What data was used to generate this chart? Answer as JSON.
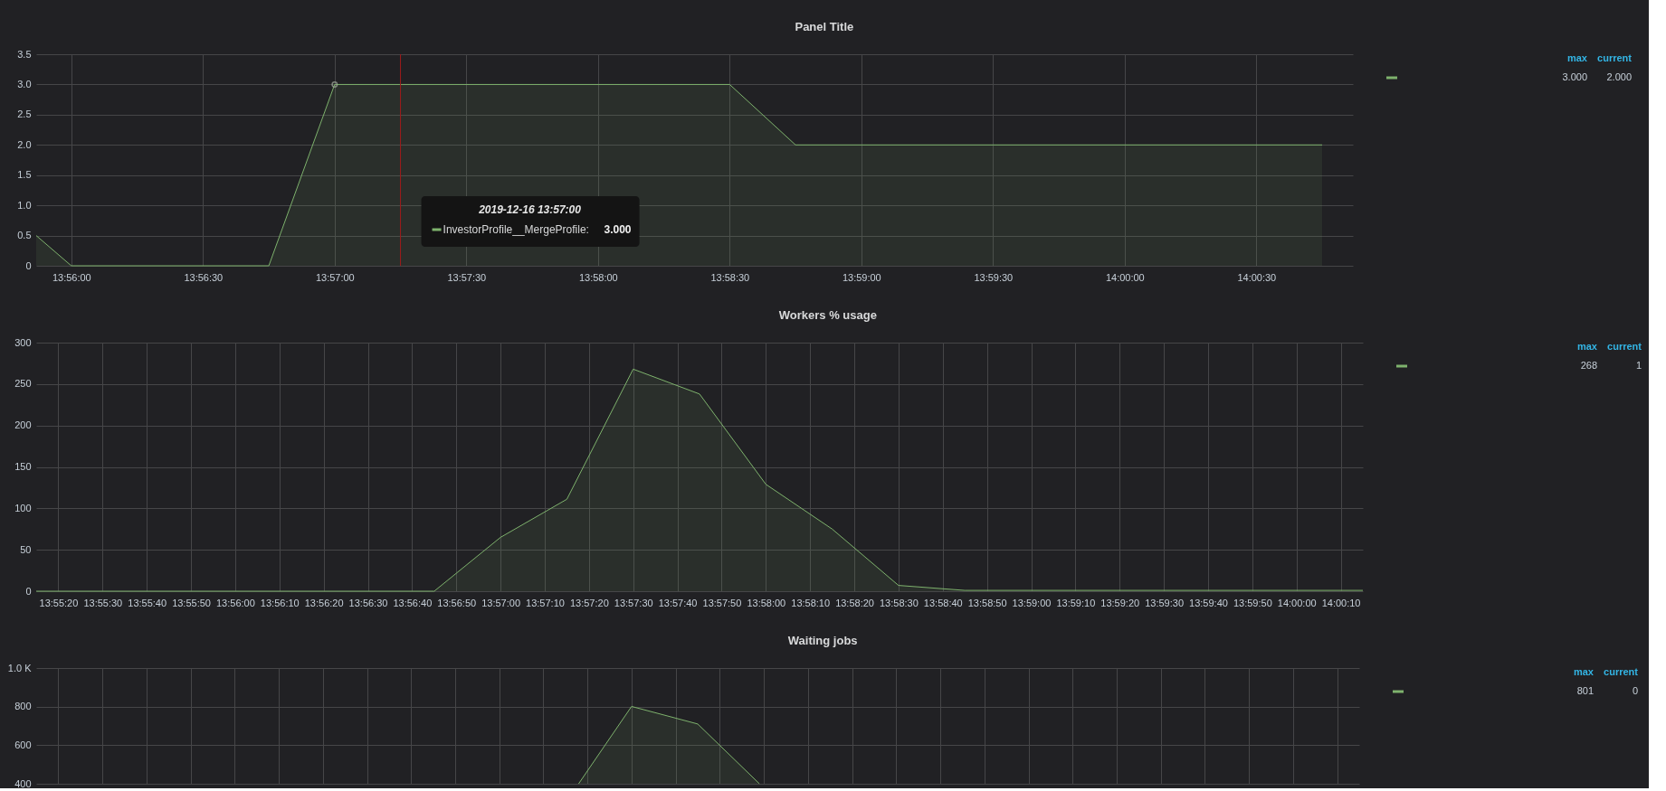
{
  "chart_data": [
    {
      "type": "area",
      "title": "Panel Title",
      "x": [
        "2019-12-16T13:55:52",
        "2019-12-16T13:56:00",
        "2019-12-16T13:56:45",
        "2019-12-16T13:57:00",
        "2019-12-16T13:58:30",
        "2019-12-16T13:58:45",
        "2019-12-16T14:00:45"
      ],
      "series": [
        {
          "color": "#7eb26d",
          "values": [
            0.5,
            0,
            0,
            3,
            3,
            2,
            2
          ]
        },
        {
          "type": "scatter",
          "marker": "circle",
          "color": "#a4ad9f",
          "x": [
            "2019-12-16T13:57:00"
          ],
          "values": [
            3
          ]
        }
      ],
      "xlim": [
        "2019-12-16T13:55:52",
        "2019-12-16T14:00:52"
      ],
      "xticks": [
        {
          "value": "2019-12-16T13:56:00",
          "label": "13:56:00"
        },
        {
          "value": "2019-12-16T13:56:30",
          "label": "13:56:30"
        },
        {
          "value": "2019-12-16T13:57:00",
          "label": "13:57:00"
        },
        {
          "value": "2019-12-16T13:57:30",
          "label": "13:57:30"
        },
        {
          "value": "2019-12-16T13:58:00",
          "label": "13:58:00"
        },
        {
          "value": "2019-12-16T13:58:30",
          "label": "13:58:30"
        },
        {
          "value": "2019-12-16T13:59:00",
          "label": "13:59:00"
        },
        {
          "value": "2019-12-16T13:59:30",
          "label": "13:59:30"
        },
        {
          "value": "2019-12-16T14:00:00",
          "label": "14:00:00"
        },
        {
          "value": "2019-12-16T14:00:30",
          "label": "14:00:30"
        }
      ],
      "ylim": [
        0,
        3.5
      ],
      "yticks": [
        0,
        0.5,
        {
          "value": 1,
          "label": "1.0"
        },
        1.5,
        {
          "value": 2,
          "label": "2.0"
        },
        2.5,
        {
          "value": 3,
          "label": "3.0"
        },
        3.5
      ],
      "grid": true,
      "annotations": [
        "max",
        "current",
        "3.000",
        "2.000",
        "2019-12-16 13:57:00",
        "InvestorProfile__MergeProfile:",
        "3.000"
      ],
      "ref_lines": [
        {
          "axis": "x",
          "value": "2019-12-16T13:57:15",
          "color": "#9e1b1b"
        }
      ]
    },
    {
      "type": "area",
      "title": "Workers % usage",
      "x": [
        "2019-12-16T13:55:15",
        "2019-12-16T13:56:45",
        "2019-12-16T13:57:00",
        "2019-12-16T13:57:15",
        "2019-12-16T13:57:30",
        "2019-12-16T13:57:45",
        "2019-12-16T13:58:00",
        "2019-12-16T13:58:15",
        "2019-12-16T13:58:30",
        "2019-12-16T13:58:45",
        "2019-12-16T14:00:15"
      ],
      "series": [
        {
          "color": "#7eb26d",
          "values": [
            0,
            0,
            65,
            111,
            268,
            238,
            129,
            75,
            7,
            1,
            1
          ]
        }
      ],
      "xlim": [
        "2019-12-16T13:55:15",
        "2019-12-16T14:00:15"
      ],
      "xticks": [
        {
          "value": "2019-12-16T13:55:20",
          "label": "13:55:20"
        },
        {
          "value": "2019-12-16T13:55:30",
          "label": "13:55:30"
        },
        {
          "value": "2019-12-16T13:55:40",
          "label": "13:55:40"
        },
        {
          "value": "2019-12-16T13:55:50",
          "label": "13:55:50"
        },
        {
          "value": "2019-12-16T13:56:00",
          "label": "13:56:00"
        },
        {
          "value": "2019-12-16T13:56:10",
          "label": "13:56:10"
        },
        {
          "value": "2019-12-16T13:56:20",
          "label": "13:56:20"
        },
        {
          "value": "2019-12-16T13:56:30",
          "label": "13:56:30"
        },
        {
          "value": "2019-12-16T13:56:40",
          "label": "13:56:40"
        },
        {
          "value": "2019-12-16T13:56:50",
          "label": "13:56:50"
        },
        {
          "value": "2019-12-16T13:57:00",
          "label": "13:57:00"
        },
        {
          "value": "2019-12-16T13:57:10",
          "label": "13:57:10"
        },
        {
          "value": "2019-12-16T13:57:20",
          "label": "13:57:20"
        },
        {
          "value": "2019-12-16T13:57:30",
          "label": "13:57:30"
        },
        {
          "value": "2019-12-16T13:57:40",
          "label": "13:57:40"
        },
        {
          "value": "2019-12-16T13:57:50",
          "label": "13:57:50"
        },
        {
          "value": "2019-12-16T13:58:00",
          "label": "13:58:00"
        },
        {
          "value": "2019-12-16T13:58:10",
          "label": "13:58:10"
        },
        {
          "value": "2019-12-16T13:58:20",
          "label": "13:58:20"
        },
        {
          "value": "2019-12-16T13:58:30",
          "label": "13:58:30"
        },
        {
          "value": "2019-12-16T13:58:40",
          "label": "13:58:40"
        },
        {
          "value": "2019-12-16T13:58:50",
          "label": "13:58:50"
        },
        {
          "value": "2019-12-16T13:59:00",
          "label": "13:59:00"
        },
        {
          "value": "2019-12-16T13:59:10",
          "label": "13:59:10"
        },
        {
          "value": "2019-12-16T13:59:20",
          "label": "13:59:20"
        },
        {
          "value": "2019-12-16T13:59:30",
          "label": "13:59:30"
        },
        {
          "value": "2019-12-16T13:59:40",
          "label": "13:59:40"
        },
        {
          "value": "2019-12-16T13:59:50",
          "label": "13:59:50"
        },
        {
          "value": "2019-12-16T14:00:00",
          "label": "14:00:00"
        },
        {
          "value": "2019-12-16T14:00:10",
          "label": "14:00:10"
        }
      ],
      "ylim": [
        0,
        300
      ],
      "yticks": [
        0,
        50,
        100,
        150,
        200,
        250,
        300
      ],
      "grid": true,
      "annotations": [
        "max",
        "current",
        "268",
        "1"
      ]
    },
    {
      "type": "area",
      "title": "Waiting jobs",
      "x": [
        "2019-12-16T13:57:18",
        "2019-12-16T13:57:30",
        "2019-12-16T13:57:45",
        "2019-12-16T13:57:59"
      ],
      "series": [
        {
          "color": "#7eb26d",
          "values": [
            400,
            801,
            710,
            400
          ]
        }
      ],
      "xlim": [
        "2019-12-16T13:55:15",
        "2019-12-16T14:00:15"
      ],
      "xticks": [
        {
          "value": "2019-12-16T13:55:20",
          "label": null
        },
        {
          "value": "2019-12-16T13:55:30",
          "label": null
        },
        {
          "value": "2019-12-16T13:55:40",
          "label": null
        },
        {
          "value": "2019-12-16T13:55:50",
          "label": null
        },
        {
          "value": "2019-12-16T13:56:00",
          "label": null
        },
        {
          "value": "2019-12-16T13:56:10",
          "label": null
        },
        {
          "value": "2019-12-16T13:56:20",
          "label": null
        },
        {
          "value": "2019-12-16T13:56:30",
          "label": null
        },
        {
          "value": "2019-12-16T13:56:40",
          "label": null
        },
        {
          "value": "2019-12-16T13:56:50",
          "label": null
        },
        {
          "value": "2019-12-16T13:57:00",
          "label": null
        },
        {
          "value": "2019-12-16T13:57:10",
          "label": null
        },
        {
          "value": "2019-12-16T13:57:20",
          "label": null
        },
        {
          "value": "2019-12-16T13:57:30",
          "label": null
        },
        {
          "value": "2019-12-16T13:57:40",
          "label": null
        },
        {
          "value": "2019-12-16T13:57:50",
          "label": null
        },
        {
          "value": "2019-12-16T13:58:00",
          "label": null
        },
        {
          "value": "2019-12-16T13:58:10",
          "label": null
        },
        {
          "value": "2019-12-16T13:58:20",
          "label": null
        },
        {
          "value": "2019-12-16T13:58:30",
          "label": null
        },
        {
          "value": "2019-12-16T13:58:40",
          "label": null
        },
        {
          "value": "2019-12-16T13:58:50",
          "label": null
        },
        {
          "value": "2019-12-16T13:59:00",
          "label": null
        },
        {
          "value": "2019-12-16T13:59:10",
          "label": null
        },
        {
          "value": "2019-12-16T13:59:20",
          "label": null
        },
        {
          "value": "2019-12-16T13:59:30",
          "label": null
        },
        {
          "value": "2019-12-16T13:59:40",
          "label": null
        },
        {
          "value": "2019-12-16T13:59:50",
          "label": null
        },
        {
          "value": "2019-12-16T14:00:00",
          "label": null
        },
        {
          "value": "2019-12-16T14:00:10",
          "label": null
        }
      ],
      "ylim": [
        400,
        1000
      ],
      "yticks": [
        400,
        600,
        800,
        {
          "value": 1000,
          "label": "1.0 K"
        }
      ],
      "tick_labels": "y",
      "grid": true,
      "annotations": [
        "max",
        "current",
        "801",
        "0"
      ]
    }
  ]
}
